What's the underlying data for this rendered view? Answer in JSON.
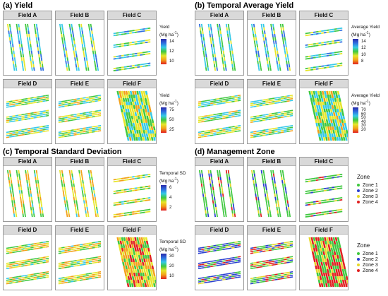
{
  "panels": [
    {
      "title": "(a) Yield",
      "fields": [
        "Field A",
        "Field B",
        "Field C",
        "Field D",
        "Field E",
        "Field F"
      ],
      "legends": [
        {
          "title": "Yield",
          "unit": "(Mg ha",
          "unit_sup": "-1",
          "unit_end": ")",
          "ticks": [
            "14",
            "12",
            "10"
          ]
        },
        {
          "title": "Yield",
          "unit": "(Mg ha",
          "unit_sup": "-1",
          "unit_end": ")",
          "ticks": [
            "75",
            "50",
            "25"
          ]
        }
      ]
    },
    {
      "title": "(b) Temporal Average Yield",
      "fields": [
        "Field A",
        "Field B",
        "Field C",
        "Field D",
        "Field E",
        "Field F"
      ],
      "legends": [
        {
          "title": "Average Yield",
          "unit": "(Mg ha",
          "unit_sup": "-1",
          "unit_end": ")",
          "ticks": [
            "14",
            "12",
            "10",
            "8"
          ]
        },
        {
          "title": "Average Yield",
          "unit": "(Mg ha",
          "unit_sup": "-1",
          "unit_end": ")",
          "ticks": [
            "70",
            "60",
            "50",
            "40",
            "30",
            "20"
          ]
        }
      ]
    },
    {
      "title": "(c) Temporal Standard Deviation",
      "fields": [
        "Field A",
        "Field B",
        "Field C",
        "Field D",
        "Field E",
        "Field F"
      ],
      "legends": [
        {
          "title": "Temporal SD",
          "unit": "(Mg ha",
          "unit_sup": "-1",
          "unit_end": ")",
          "ticks": [
            "6",
            "4",
            "2"
          ]
        },
        {
          "title": "Temporal SD",
          "unit": "(Mg ha",
          "unit_sup": "-1",
          "unit_end": ")",
          "ticks": [
            "30",
            "20",
            "10"
          ]
        }
      ]
    },
    {
      "title": "(d) Management Zone",
      "fields": [
        "Field A",
        "Field B",
        "Field C",
        "Field D",
        "Field E",
        "Field F"
      ],
      "zone_legends": [
        {
          "title": "Zone",
          "items": [
            "Zone 1",
            "Zone 2",
            "Zone 3",
            "Zone 4"
          ]
        },
        {
          "title": "Zone",
          "items": [
            "Zone 1",
            "Zone 2",
            "Zone 3",
            "Zone 4"
          ]
        }
      ]
    }
  ],
  "colors": {
    "gradient": [
      "#2a2aa8",
      "#2f6ee0",
      "#35c9e6",
      "#3fc83f",
      "#e6e62a",
      "#f2a019",
      "#e02020"
    ],
    "zones": [
      "#3fc83f",
      "#2a3fd0",
      "#e6d82a",
      "#e02020"
    ]
  }
}
